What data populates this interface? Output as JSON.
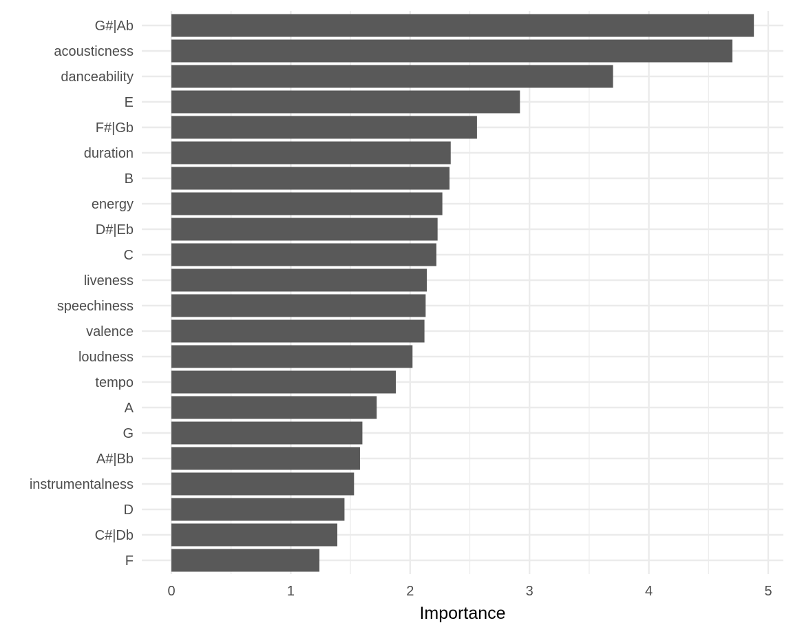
{
  "chart_data": {
    "type": "bar",
    "orientation": "horizontal",
    "categories": [
      "G#|Ab",
      "acousticness",
      "danceability",
      "E",
      "F#|Gb",
      "duration",
      "B",
      "energy",
      "D#|Eb",
      "C",
      "liveness",
      "speechiness",
      "valence",
      "loudness",
      "tempo",
      "A",
      "G",
      "A#|Bb",
      "instrumentalness",
      "D",
      "C#|Db",
      "F"
    ],
    "values": [
      4.88,
      4.7,
      3.7,
      2.92,
      2.56,
      2.34,
      2.33,
      2.27,
      2.23,
      2.22,
      2.14,
      2.13,
      2.12,
      2.02,
      1.88,
      1.72,
      1.6,
      1.58,
      1.53,
      1.45,
      1.39,
      1.24
    ],
    "xlabel": "Importance",
    "ylabel": "",
    "xlim": [
      0,
      5
    ],
    "xticks": [
      "0",
      "1",
      "2",
      "3",
      "4",
      "5"
    ],
    "grid": true,
    "bar_color": "#595959",
    "grid_color": "#ebebeb"
  }
}
